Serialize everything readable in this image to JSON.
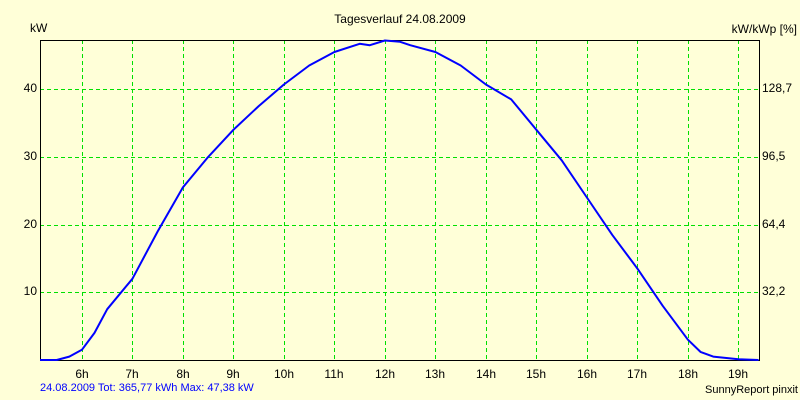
{
  "title": "Tagesverlauf 24.08.2009",
  "left_axis_label": "kW",
  "right_axis_label": "kW/kWp [%]",
  "footer_summary": "24.08.2009 Tot: 365,77 kWh Max: 47,38 kW",
  "footer_brand": "SunnyReport pinxit",
  "colors": {
    "background": "#ffffd8",
    "grid": "#00e000",
    "line": "#0000ff",
    "axis": "#000000",
    "summary_text": "#0000ff"
  },
  "chart_data": {
    "type": "line",
    "title": "Tagesverlauf 24.08.2009",
    "xlabel": "",
    "ylabel": "kW",
    "y2label": "kW/kWp [%]",
    "x_ticks": [
      "6h",
      "7h",
      "8h",
      "9h",
      "10h",
      "11h",
      "12h",
      "13h",
      "14h",
      "15h",
      "16h",
      "17h",
      "18h",
      "19h"
    ],
    "y_ticks": [
      10,
      20,
      30,
      40
    ],
    "y2_ticks": [
      "32,2",
      "64,4",
      "96,5",
      "128,7"
    ],
    "xlim": [
      5.17,
      19.4
    ],
    "ylim": [
      0,
      47.4
    ],
    "grid": true,
    "series": [
      {
        "name": "kW",
        "x": [
          5.17,
          5.5,
          5.75,
          6.0,
          6.25,
          6.5,
          7.0,
          7.5,
          8.0,
          8.5,
          9.0,
          9.5,
          10.0,
          10.5,
          11.0,
          11.5,
          11.7,
          12.0,
          12.3,
          12.5,
          13.0,
          13.5,
          14.0,
          14.5,
          15.0,
          15.5,
          16.0,
          16.5,
          17.0,
          17.5,
          18.0,
          18.25,
          18.5,
          19.0,
          19.4
        ],
        "values": [
          0,
          0,
          0.5,
          1.5,
          4,
          7.5,
          12,
          19,
          25.5,
          30,
          34,
          37.5,
          40.7,
          43.5,
          45.5,
          46.7,
          46.5,
          47.2,
          47.0,
          46.5,
          45.5,
          43.5,
          40.7,
          38.5,
          34,
          29.5,
          24,
          18.5,
          13.5,
          8,
          3,
          1.2,
          0.5,
          0.1,
          0
        ]
      }
    ],
    "annotations": [
      "Tot: 365,77 kWh",
      "Max: 47,38 kW"
    ]
  }
}
